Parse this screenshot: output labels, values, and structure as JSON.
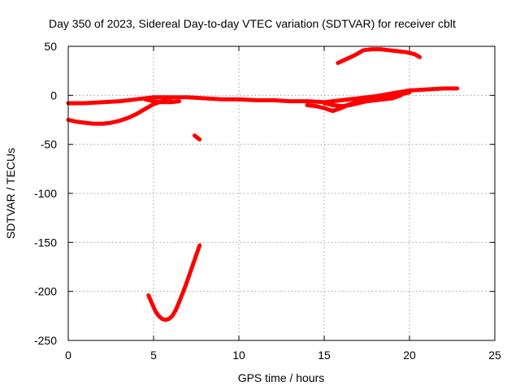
{
  "chart_data": {
    "type": "line",
    "title": "Day 350 of 2023, Sidereal Day-to-day VTEC variation (SDTVAR) for receiver cblt",
    "xlabel": "GPS time / hours",
    "ylabel": "SDTVAR / TECUs",
    "xlim": [
      0,
      25
    ],
    "ylim": [
      -250,
      50
    ],
    "xticks": [
      "0",
      "5",
      "10",
      "15",
      "20",
      "25"
    ],
    "yticks": [
      "50",
      "0",
      "-50",
      "-100",
      "-150",
      "-200",
      "-250"
    ],
    "grid": true,
    "color": "#ff0000",
    "series": [
      {
        "name": "track-1",
        "x": [
          0,
          1,
          2,
          3,
          4,
          5,
          6,
          7,
          8,
          9,
          10,
          11,
          12,
          13,
          14,
          15,
          16,
          17,
          18,
          19,
          20,
          21,
          22,
          22.8
        ],
        "y": [
          -8,
          -8,
          -7,
          -6,
          -4,
          -2,
          -2,
          -2,
          -3,
          -4,
          -4,
          -5,
          -5,
          -6,
          -6,
          -7,
          -5,
          -3,
          -1,
          2,
          5,
          6,
          7,
          7
        ]
      },
      {
        "name": "track-2",
        "x": [
          0,
          0.5,
          1,
          1.5,
          2,
          2.5,
          3,
          3.5,
          4,
          4.5,
          5,
          5.5,
          6
        ],
        "y": [
          -25,
          -27,
          -28,
          -29,
          -29,
          -28,
          -26,
          -23,
          -19,
          -14,
          -9,
          -6,
          -5
        ]
      },
      {
        "name": "track-3",
        "x": [
          4.7,
          4.9,
          5.1,
          5.3,
          5.5,
          5.7,
          5.9,
          6.1,
          6.3,
          6.5,
          6.7,
          6.9,
          7.1,
          7.3,
          7.5,
          7.7
        ],
        "y": [
          -204,
          -212,
          -220,
          -225,
          -228,
          -229,
          -228,
          -225,
          -219,
          -211,
          -202,
          -193,
          -183,
          -173,
          -163,
          -153
        ]
      },
      {
        "name": "track-4",
        "x": [
          7.4,
          7.7
        ],
        "y": [
          -41,
          -45
        ]
      },
      {
        "name": "track-5",
        "x": [
          15.8,
          16.3,
          16.8,
          17.3,
          17.8,
          18.3,
          18.8,
          19.3,
          19.8,
          20.3,
          20.6
        ],
        "y": [
          33,
          37,
          41,
          46,
          47,
          47,
          46,
          45,
          44,
          42,
          39
        ]
      },
      {
        "name": "track-6",
        "x": [
          14,
          14.5,
          15,
          15.5,
          16,
          16.5,
          17,
          17.5,
          18,
          18.5,
          19,
          19.5,
          20
        ],
        "y": [
          -10,
          -11,
          -13,
          -16,
          -13,
          -9,
          -6,
          -4,
          -3,
          -2,
          -1,
          1,
          3
        ]
      },
      {
        "name": "track-7",
        "x": [
          15,
          15.5,
          16,
          16.5,
          17,
          17.5,
          18,
          18.5,
          19,
          19.5
        ],
        "y": [
          -8,
          -10,
          -11,
          -10,
          -8,
          -6,
          -5,
          -4,
          -3,
          0
        ]
      },
      {
        "name": "track-8",
        "x": [
          4.5,
          5,
          5.5,
          6,
          6.5
        ],
        "y": [
          -4,
          -6,
          -7,
          -7,
          -6
        ]
      }
    ]
  }
}
